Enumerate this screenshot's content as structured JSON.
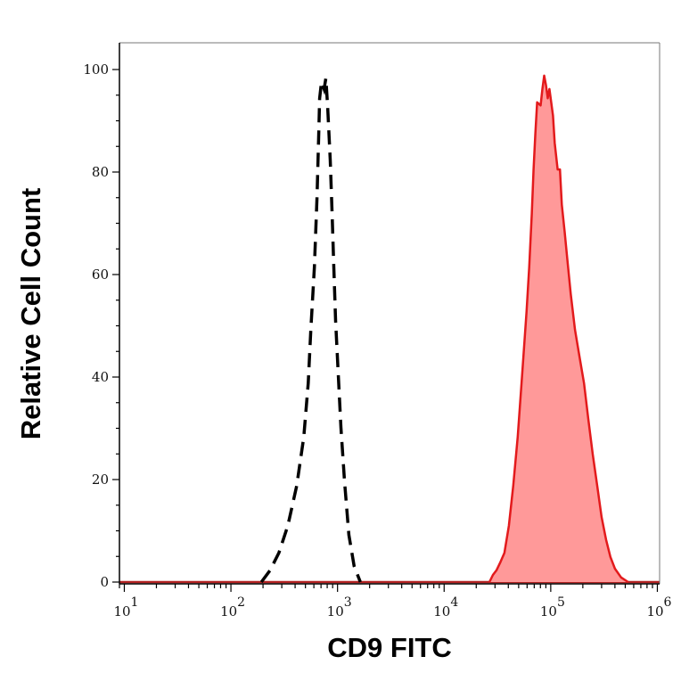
{
  "chart_data": {
    "type": "area",
    "title": "",
    "xlabel": "CD9 FITC",
    "ylabel": "Relative Cell Count",
    "xscale": "log",
    "xlim": [
      9,
      1050000
    ],
    "ylim": [
      0,
      105
    ],
    "x_ticks": [
      {
        "base": "10",
        "exp": "1",
        "value": 10
      },
      {
        "base": "10",
        "exp": "2",
        "value": 100
      },
      {
        "base": "10",
        "exp": "3",
        "value": 1000
      },
      {
        "base": "10",
        "exp": "4",
        "value": 10000
      },
      {
        "base": "10",
        "exp": "5",
        "value": 100000
      },
      {
        "base": "10",
        "exp": "6",
        "value": 1000000
      }
    ],
    "y_ticks": [
      "0",
      "20",
      "40",
      "60",
      "80",
      "100"
    ],
    "grid": false,
    "legend": "none",
    "series": [
      {
        "style": "dashed-line",
        "color": "#000000",
        "x": [
          193,
          233,
          282,
          342,
          414,
          482,
          531,
          562,
          607,
          643,
          667,
          680,
          707,
          748,
          778,
          808,
          855,
          889,
          923,
          959,
          1016,
          1076,
          1162,
          1278,
          1432,
          1638
        ],
        "y": [
          0,
          2.3,
          5.7,
          11,
          18.8,
          28.3,
          38.8,
          49.2,
          61.4,
          75.3,
          87.5,
          94.4,
          97.6,
          96.2,
          98.3,
          92.7,
          82.3,
          71.8,
          61.4,
          51,
          40.5,
          30.1,
          19.7,
          9.2,
          3.1,
          0
        ]
      },
      {
        "style": "filled",
        "color": "#e31a1c",
        "fill": "#ff9999",
        "x": [
          26600,
          28700,
          31000,
          33400,
          36800,
          40500,
          44500,
          49000,
          53900,
          59300,
          62800,
          66400,
          69000,
          71700,
          74500,
          80400,
          83500,
          86800,
          90200,
          93700,
          97300,
          101000,
          105000,
          109000,
          116000,
          122000,
          127000,
          135000,
          143000,
          154000,
          169000,
          186000,
          205000,
          225000,
          248000,
          273000,
          300000,
          330000,
          363000,
          400000,
          457000,
          532000
        ],
        "y": [
          0,
          1.4,
          2.3,
          3.7,
          5.7,
          11,
          18.8,
          28.3,
          40.5,
          52.7,
          61.4,
          71.8,
          80.5,
          87.5,
          93.6,
          93,
          96.2,
          98.8,
          97,
          94.4,
          96.2,
          93.6,
          91,
          85.7,
          80.5,
          80.5,
          73.6,
          68.3,
          63.1,
          56.2,
          49.2,
          44,
          38.8,
          31.8,
          24.9,
          18.8,
          12.7,
          8.3,
          4.9,
          2.6,
          0.9,
          0
        ]
      }
    ]
  }
}
